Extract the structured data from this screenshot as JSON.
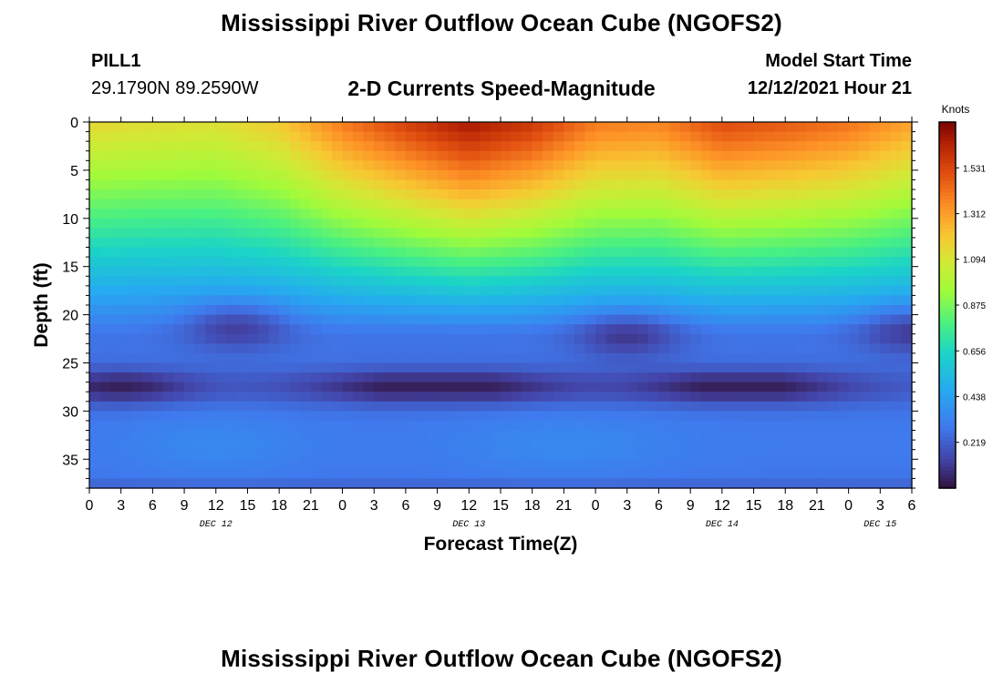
{
  "header": {
    "title": "Mississippi River Outflow Ocean Cube (NGOFS2)",
    "station": "PILL1",
    "coordinates": "29.1790N  89.2590W",
    "subtitle": "2-D Currents Speed-Magnitude",
    "model_start_label": "Model Start Time",
    "model_start_value": "12/12/2021 Hour 21"
  },
  "footer": {
    "title": "Mississippi River Outflow Ocean Cube (NGOFS2)"
  },
  "chart_data": {
    "type": "heatmap",
    "title": "2-D Currents Speed-Magnitude",
    "xlabel": "Forecast Time(Z)",
    "ylabel": "Depth (ft)",
    "x_tick_labels": [
      "0",
      "3",
      "6",
      "9",
      "12",
      "15",
      "18",
      "21",
      "0",
      "3",
      "6",
      "9",
      "12",
      "15",
      "18",
      "21",
      "0",
      "3",
      "6",
      "9",
      "12",
      "15",
      "18",
      "21",
      "0",
      "3",
      "6"
    ],
    "date_labels": [
      {
        "label": "DEC 12",
        "at_tick": 4
      },
      {
        "label": "DEC 13",
        "at_tick": 12
      },
      {
        "label": "DEC 14",
        "at_tick": 20
      },
      {
        "label": "DEC 15",
        "at_tick": 25
      }
    ],
    "xlim_hours": [
      0,
      78
    ],
    "ylim": [
      0,
      38
    ],
    "y_ticks": [
      0,
      5,
      10,
      15,
      20,
      25,
      30,
      35
    ],
    "colorbar": {
      "unit": "Knots",
      "range": [
        0,
        1.75
      ],
      "ticks": [
        1.531,
        1.312,
        1.094,
        0.875,
        0.656,
        0.438,
        0.219
      ],
      "tick_labels": [
        "1.531",
        "1.312",
        "1.094",
        "0.875",
        "0.656",
        "0.438",
        "0.219"
      ]
    },
    "grid": false,
    "surface_speed_by_hour": {
      "hours": [
        0,
        6,
        12,
        18,
        24,
        30,
        36,
        42,
        48,
        54,
        60,
        66,
        72,
        78
      ],
      "knots": [
        1.15,
        1.13,
        1.12,
        1.2,
        1.4,
        1.55,
        1.68,
        1.58,
        1.4,
        1.38,
        1.52,
        1.48,
        1.42,
        1.3
      ]
    },
    "low_speed_band": {
      "depth_ft": 27.5,
      "min_knots": 0.05
    },
    "mid_depth_minima": [
      {
        "hour": 14,
        "depth_ft": 21,
        "knots": 0.12
      },
      {
        "hour": 51,
        "depth_ft": 22,
        "knots": 0.1
      },
      {
        "hour": 78,
        "depth_ft": 21.5,
        "knots": 0.12
      }
    ],
    "bottom_speed_knots": 0.3
  }
}
